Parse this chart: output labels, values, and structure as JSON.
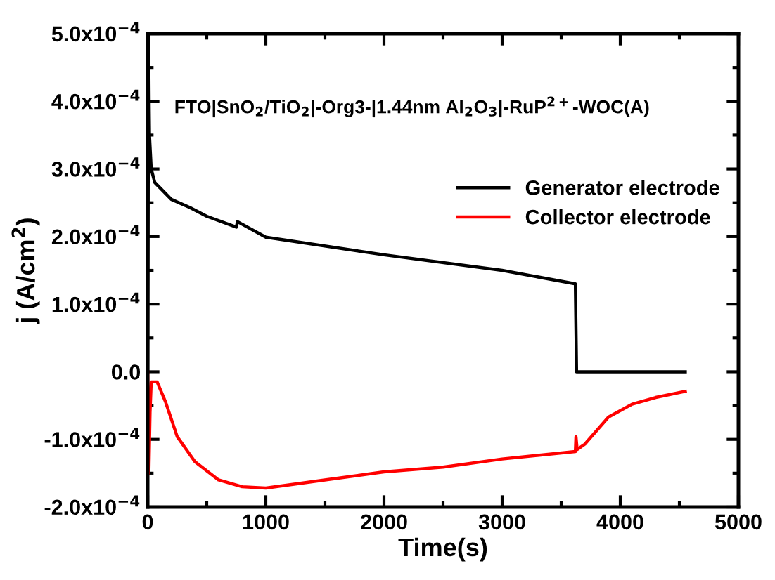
{
  "chart_data": {
    "type": "line",
    "title": "FTO|SnO$_{2}$/TiO$_{2}$|-Org3-|1.44nm Al$_{2}$O$_{3}$|-RuP$^{2+}$-WOC(A)",
    "xlabel": "Time(s)",
    "ylabel": "j (A/cm$^{2}$)",
    "xlim": [
      0,
      5000
    ],
    "xticks": [
      0,
      1000,
      2000,
      3000,
      4000,
      5000
    ],
    "ylim": [
      -0.0002,
      0.0005
    ],
    "yticks": [
      {
        "value": -0.0002,
        "label": "-2.0x10$^{−4}$"
      },
      {
        "value": -0.0001,
        "label": "-1.0x10$^{−4}$"
      },
      {
        "value": 0,
        "label": "0.0"
      },
      {
        "value": 0.0001,
        "label": "1.0x10$^{−4}$"
      },
      {
        "value": 0.0002,
        "label": "2.0x10$^{−4}$"
      },
      {
        "value": 0.0003,
        "label": "3.0x10$^{−4}$"
      },
      {
        "value": 0.0004,
        "label": "4.0x10$^{−4}$"
      },
      {
        "value": 0.0005,
        "label": "5.0x10$^{−4}$"
      }
    ],
    "grid": false,
    "legend": "top right",
    "marker": "none",
    "line_style": "solid",
    "series": [
      {
        "name": "Generator electrode",
        "color": "#000000",
        "x": [
          0,
          8,
          12,
          15,
          30,
          60,
          200,
          357,
          500,
          750,
          760,
          1000,
          2000,
          3000,
          3620,
          3630,
          3700,
          4550
        ],
        "values": [
          0,
          0.0005,
          0.0004,
          0.00035,
          0.0003,
          0.00028,
          0.000255,
          0.000243,
          0.00023,
          0.000214,
          0.000222,
          0.000199,
          0.000173,
          0.00015,
          0.00013,
          0,
          0,
          0
        ]
      },
      {
        "name": "Collector electrode",
        "color": "#ff0000",
        "x": [
          0,
          10,
          20,
          30,
          80,
          150,
          250,
          400,
          600,
          800,
          1000,
          1500,
          2000,
          2500,
          3000,
          3620,
          3625,
          3635,
          3700,
          3900,
          4100,
          4300,
          4550
        ],
        "values": [
          0,
          -0.00015,
          -6e-05,
          -1.5e-05,
          -1.5e-05,
          -4.4e-05,
          -9.6e-05,
          -0.000133,
          -0.00016,
          -0.00017,
          -0.000172,
          -0.00016,
          -0.000148,
          -0.000141,
          -0.000129,
          -0.000118,
          -9.6e-05,
          -0.000115,
          -0.000107,
          -6.7e-05,
          -4.8e-05,
          -3.8e-05,
          -2.9e-05
        ]
      }
    ]
  }
}
